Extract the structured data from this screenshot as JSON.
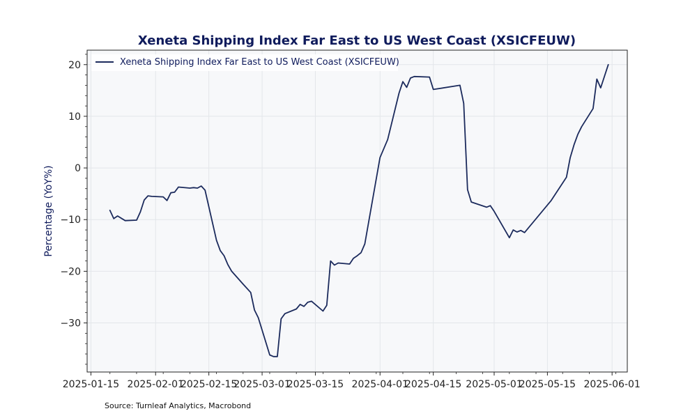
{
  "chart_data": {
    "type": "line",
    "title": "Xeneta Shipping Index Far East to US West Coast (XSICFEUW)",
    "xlabel": "",
    "ylabel": "Percentage (YoY%)",
    "x_ticks": [
      "2025-01-15",
      "2025-02-01",
      "2025-02-15",
      "2025-03-01",
      "2025-03-15",
      "2025-04-01",
      "2025-04-15",
      "2025-05-01",
      "2025-05-15",
      "2025-06-01"
    ],
    "y_ticks": [
      20,
      10,
      0,
      -10,
      -20,
      -30
    ],
    "xlim": [
      "2025-01-14",
      "2025-06-05"
    ],
    "ylim": [
      -39.5,
      22.8
    ],
    "grid": true,
    "legend": {
      "location": "upper-left",
      "entries": [
        "Xeneta Shipping Index Far East to US West Coast (XSICFEUW)"
      ]
    },
    "series": [
      {
        "name": "Xeneta Shipping Index Far East to US West Coast (XSICFEUW)",
        "color": "#1b2a5c",
        "points": [
          {
            "x": "2025-01-20",
            "y": -8.2
          },
          {
            "x": "2025-01-21",
            "y": -9.8
          },
          {
            "x": "2025-01-22",
            "y": -9.3
          },
          {
            "x": "2025-01-24",
            "y": -10.2
          },
          {
            "x": "2025-01-27",
            "y": -10.1
          },
          {
            "x": "2025-01-28",
            "y": -8.5
          },
          {
            "x": "2025-01-29",
            "y": -6.2
          },
          {
            "x": "2025-01-30",
            "y": -5.4
          },
          {
            "x": "2025-01-31",
            "y": -5.5
          },
          {
            "x": "2025-02-03",
            "y": -5.6
          },
          {
            "x": "2025-02-04",
            "y": -6.3
          },
          {
            "x": "2025-02-05",
            "y": -4.8
          },
          {
            "x": "2025-02-06",
            "y": -4.7
          },
          {
            "x": "2025-02-07",
            "y": -3.7
          },
          {
            "x": "2025-02-10",
            "y": -3.9
          },
          {
            "x": "2025-02-11",
            "y": -3.8
          },
          {
            "x": "2025-02-12",
            "y": -3.9
          },
          {
            "x": "2025-02-13",
            "y": -3.5
          },
          {
            "x": "2025-02-14",
            "y": -4.3
          },
          {
            "x": "2025-02-17",
            "y": -14.0
          },
          {
            "x": "2025-02-18",
            "y": -16.0
          },
          {
            "x": "2025-02-19",
            "y": -17.0
          },
          {
            "x": "2025-02-20",
            "y": -18.7
          },
          {
            "x": "2025-02-21",
            "y": -20.0
          },
          {
            "x": "2025-02-24",
            "y": -22.5
          },
          {
            "x": "2025-02-26",
            "y": -24.1
          },
          {
            "x": "2025-02-27",
            "y": -27.5
          },
          {
            "x": "2025-02-28",
            "y": -29.0
          },
          {
            "x": "2025-03-03",
            "y": -36.2
          },
          {
            "x": "2025-03-04",
            "y": -36.5
          },
          {
            "x": "2025-03-05",
            "y": -36.5
          },
          {
            "x": "2025-03-06",
            "y": -29.2
          },
          {
            "x": "2025-03-07",
            "y": -28.2
          },
          {
            "x": "2025-03-10",
            "y": -27.3
          },
          {
            "x": "2025-03-11",
            "y": -26.4
          },
          {
            "x": "2025-03-12",
            "y": -26.8
          },
          {
            "x": "2025-03-13",
            "y": -26.0
          },
          {
            "x": "2025-03-14",
            "y": -25.8
          },
          {
            "x": "2025-03-17",
            "y": -27.7
          },
          {
            "x": "2025-03-18",
            "y": -26.6
          },
          {
            "x": "2025-03-19",
            "y": -18.0
          },
          {
            "x": "2025-03-20",
            "y": -18.8
          },
          {
            "x": "2025-03-21",
            "y": -18.4
          },
          {
            "x": "2025-03-24",
            "y": -18.6
          },
          {
            "x": "2025-03-25",
            "y": -17.5
          },
          {
            "x": "2025-03-26",
            "y": -17.0
          },
          {
            "x": "2025-03-27",
            "y": -16.4
          },
          {
            "x": "2025-03-28",
            "y": -14.7
          },
          {
            "x": "2025-04-01",
            "y": 2.0
          },
          {
            "x": "2025-04-03",
            "y": 5.5
          },
          {
            "x": "2025-04-06",
            "y": 14.5
          },
          {
            "x": "2025-04-07",
            "y": 16.7
          },
          {
            "x": "2025-04-08",
            "y": 15.6
          },
          {
            "x": "2025-04-09",
            "y": 17.4
          },
          {
            "x": "2025-04-10",
            "y": 17.7
          },
          {
            "x": "2025-04-14",
            "y": 17.6
          },
          {
            "x": "2025-04-15",
            "y": 15.2
          },
          {
            "x": "2025-04-22",
            "y": 16.0
          },
          {
            "x": "2025-04-23",
            "y": 12.5
          },
          {
            "x": "2025-04-24",
            "y": -4.2
          },
          {
            "x": "2025-04-25",
            "y": -6.6
          },
          {
            "x": "2025-04-29",
            "y": -7.6
          },
          {
            "x": "2025-04-30",
            "y": -7.3
          },
          {
            "x": "2025-05-01",
            "y": -8.4
          },
          {
            "x": "2025-05-05",
            "y": -13.5
          },
          {
            "x": "2025-05-06",
            "y": -12.0
          },
          {
            "x": "2025-05-07",
            "y": -12.4
          },
          {
            "x": "2025-05-08",
            "y": -12.1
          },
          {
            "x": "2025-05-09",
            "y": -12.5
          },
          {
            "x": "2025-05-16",
            "y": -6.3
          },
          {
            "x": "2025-05-20",
            "y": -1.8
          },
          {
            "x": "2025-05-21",
            "y": 2.0
          },
          {
            "x": "2025-05-22",
            "y": 4.5
          },
          {
            "x": "2025-05-23",
            "y": 6.5
          },
          {
            "x": "2025-05-24",
            "y": 8.0
          },
          {
            "x": "2025-05-27",
            "y": 11.5
          },
          {
            "x": "2025-05-28",
            "y": 17.2
          },
          {
            "x": "2025-05-29",
            "y": 15.5
          },
          {
            "x": "2025-05-31",
            "y": 20.0
          }
        ]
      }
    ],
    "source": "Source: Turnleaf Analytics, Macrobond"
  },
  "colors": {
    "line": "#1b2a5c",
    "title": "#0f1b5c",
    "plot_background": "#f7f8fa",
    "grid": "#e3e6ea",
    "axis": "#222222"
  }
}
